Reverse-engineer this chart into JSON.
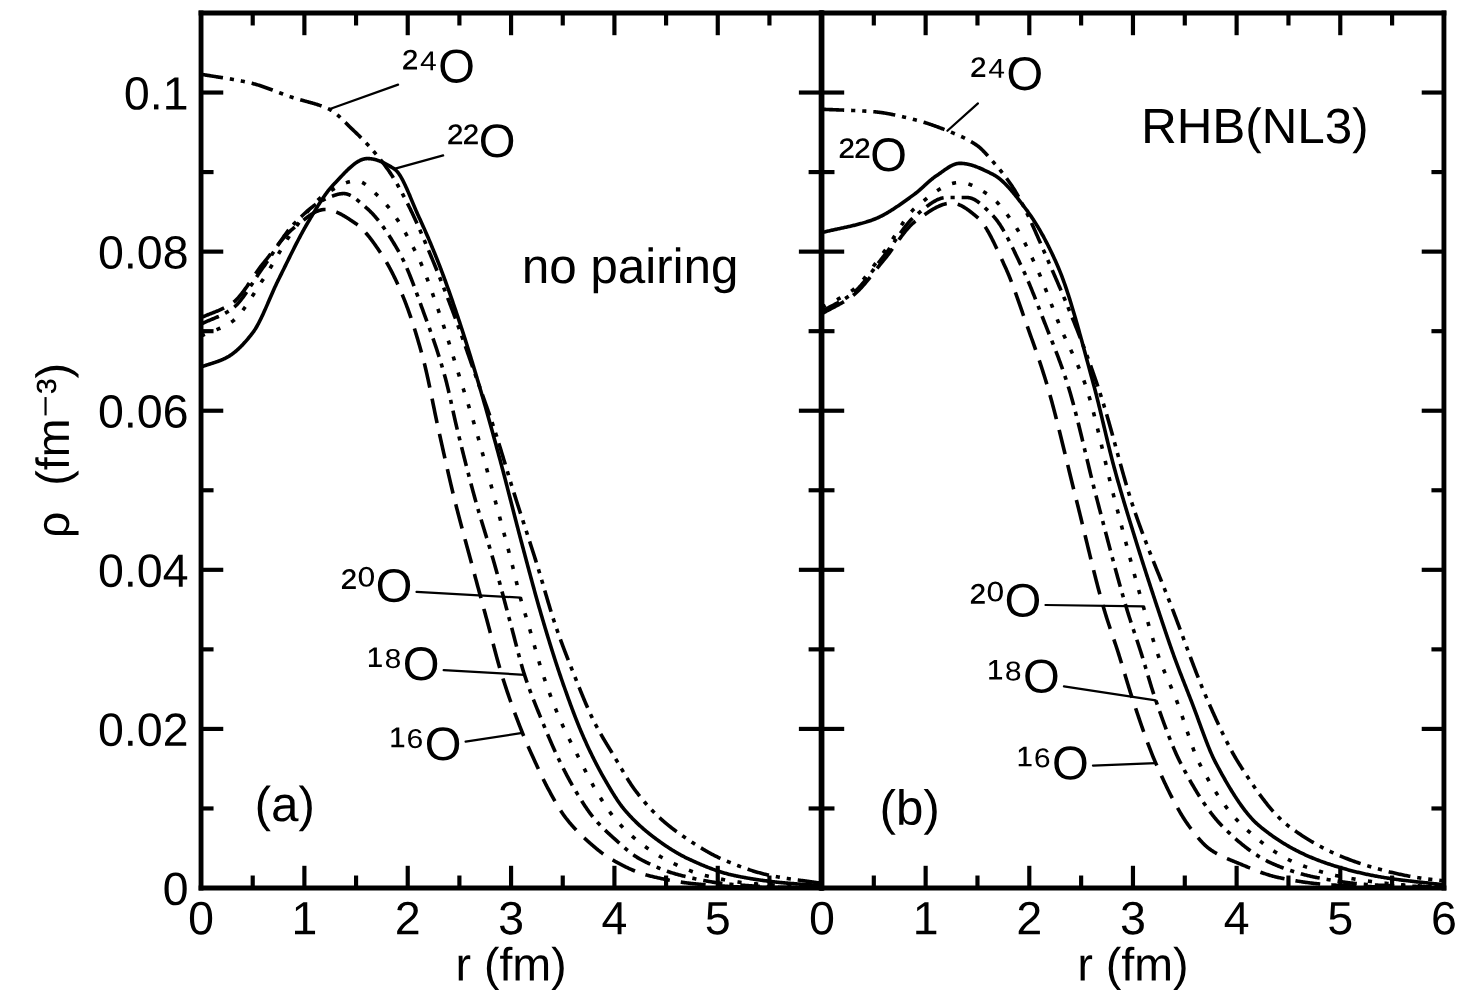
{
  "chart_data": [
    {
      "type": "line",
      "xlabel": "r (fm)",
      "ylabel": "ρ  (fm⁻³)",
      "xlim": [
        0,
        6
      ],
      "ylim": [
        0,
        0.11
      ],
      "xticks": [
        0,
        1,
        2,
        3,
        4,
        5,
        {
          "value": 6,
          "label": null
        }
      ],
      "yticks": [
        0,
        0.02,
        0.04,
        0.06,
        0.08,
        0.1
      ],
      "annotations": [
        {
          "text": "²⁴O",
          "x": 1.24,
          "y": 0.0979
        },
        {
          "text": "²²O",
          "x": 1.87,
          "y": 0.0904
        },
        "no pairing",
        {
          "text": "²⁰O",
          "x": 3.09,
          "y": 0.0365
        },
        {
          "text": "¹⁸O",
          "x": 3.13,
          "y": 0.0268
        },
        {
          "text": "¹⁶O",
          "x": 3.11,
          "y": 0.0195
        },
        "(a)"
      ],
      "series": [
        {
          "color": "#000000",
          "line_style": "dashed",
          "x": [
            0,
            0.3,
            0.6,
            0.9,
            1.2,
            1.5,
            1.75,
            1.95,
            2.15,
            2.3,
            2.45,
            2.62,
            2.77,
            2.91,
            3.11,
            3.21,
            3.37,
            3.53,
            3.75,
            3.96,
            4.32,
            4.8,
            5.3,
            6.0
          ],
          "values": [
            0.0717,
            0.0735,
            0.0785,
            0.083,
            0.0853,
            0.0835,
            0.0796,
            0.0745,
            0.0665,
            0.0575,
            0.049,
            0.0407,
            0.0335,
            0.0268,
            0.0195,
            0.0165,
            0.0122,
            0.0088,
            0.0058,
            0.0037,
            0.0016,
            0.0005,
            0.0001,
            0
          ]
        },
        {
          "color": "#000000",
          "line_style": "dashdot",
          "x": [
            0,
            0.3,
            0.6,
            0.9,
            1.2,
            1.38,
            1.6,
            1.93,
            2.15,
            2.36,
            2.48,
            2.65,
            2.84,
            3.0,
            3.13,
            3.3,
            3.45,
            3.62,
            3.8,
            4.0,
            4.24,
            4.64,
            5.1,
            5.6,
            6.0
          ],
          "values": [
            0.0709,
            0.0728,
            0.078,
            0.0835,
            0.0866,
            0.0873,
            0.0855,
            0.0796,
            0.0725,
            0.0643,
            0.0576,
            0.049,
            0.0407,
            0.033,
            0.0268,
            0.021,
            0.0165,
            0.0123,
            0.0088,
            0.0062,
            0.0037,
            0.0016,
            0.0005,
            0.0001,
            0
          ]
        },
        {
          "color": "#000000",
          "line_style": "dotted",
          "x": [
            0,
            0.3,
            0.6,
            0.9,
            1.2,
            1.5,
            1.75,
            2.09,
            2.3,
            2.5,
            2.66,
            2.84,
            3.01,
            3.09,
            3.17,
            3.31,
            3.48,
            3.65,
            3.82,
            4.0,
            4.2,
            4.48,
            4.87,
            5.3,
            6.0
          ],
          "values": [
            0.0694,
            0.0712,
            0.0765,
            0.0828,
            0.0872,
            0.0889,
            0.0865,
            0.0796,
            0.0725,
            0.0643,
            0.0576,
            0.049,
            0.0407,
            0.0365,
            0.033,
            0.0268,
            0.021,
            0.0165,
            0.0123,
            0.0088,
            0.0062,
            0.0037,
            0.0016,
            0.0006,
            0.0001
          ]
        },
        {
          "color": "#000000",
          "line_style": "solid",
          "x": [
            0,
            0.25,
            0.5,
            0.75,
            1.04,
            1.28,
            1.61,
            1.87,
            2.11,
            2.3,
            2.5,
            2.7,
            2.9,
            3.1,
            3.3,
            3.5,
            3.7,
            3.9,
            4.1,
            4.4,
            4.71,
            5.15,
            5.6,
            6.0
          ],
          "values": [
            0.0655,
            0.0667,
            0.0698,
            0.0765,
            0.0838,
            0.0884,
            0.0917,
            0.0904,
            0.0843,
            0.0785,
            0.0712,
            0.0628,
            0.0535,
            0.0435,
            0.034,
            0.0258,
            0.019,
            0.0138,
            0.0098,
            0.0062,
            0.0037,
            0.0016,
            0.0007,
            0.0003
          ]
        },
        {
          "color": "#000000",
          "line_style": "dashdotdot",
          "x": [
            0,
            0.48,
            0.88,
            1.24,
            1.47,
            1.63,
            1.83,
            2.0,
            2.22,
            2.45,
            2.66,
            2.84,
            3.02,
            3.25,
            3.43,
            3.61,
            3.8,
            4.0,
            4.2,
            4.44,
            4.7,
            5.03,
            5.5,
            6.0
          ],
          "values": [
            0.1023,
            0.1012,
            0.0994,
            0.0979,
            0.0953,
            0.0932,
            0.0899,
            0.086,
            0.0796,
            0.072,
            0.0643,
            0.0576,
            0.05,
            0.0407,
            0.033,
            0.0268,
            0.021,
            0.0165,
            0.0123,
            0.0088,
            0.0062,
            0.0037,
            0.0016,
            0.0006
          ]
        }
      ]
    },
    {
      "type": "line",
      "xlabel": "r (fm)",
      "xlim": [
        0,
        6
      ],
      "ylim": [
        0,
        0.11
      ],
      "xticks": [
        0,
        1,
        2,
        3,
        4,
        5,
        6
      ],
      "yticks": [
        0,
        0.02,
        0.04,
        0.06,
        0.08,
        0.1
      ],
      "tick_labels": "x",
      "annotations": [
        {
          "text": "²⁴O",
          "x": 1.21,
          "y": 0.0952
        },
        "RHB(NL3)",
        {
          "text": "²²O",
          "x": 0.49,
          "y": 0.084
        },
        {
          "text": "²⁰O",
          "x": 3.1,
          "y": 0.0354
        },
        {
          "text": "¹⁸O",
          "x": 3.22,
          "y": 0.0236
        },
        {
          "text": "¹⁶O",
          "x": 3.22,
          "y": 0.0157
        },
        "(b)"
      ],
      "series": [
        {
          "color": "#000000",
          "line_style": "dashed",
          "x": [
            0,
            0.3,
            0.6,
            0.9,
            1.25,
            1.5,
            1.77,
            1.97,
            2.17,
            2.45,
            2.72,
            2.86,
            3.0,
            3.22,
            3.54,
            3.75,
            4.02,
            4.41,
            4.9,
            5.5,
            6.0
          ],
          "values": [
            0.0722,
            0.0745,
            0.079,
            0.0838,
            0.0861,
            0.0843,
            0.078,
            0.071,
            0.0633,
            0.049,
            0.0351,
            0.0295,
            0.0236,
            0.0157,
            0.0078,
            0.0048,
            0.0031,
            0.0013,
            0.0004,
            0.0001,
            0
          ]
        },
        {
          "color": "#000000",
          "line_style": "dashdot",
          "x": [
            0,
            0.3,
            0.6,
            0.9,
            1.2,
            1.4,
            1.65,
            1.93,
            2.15,
            2.37,
            2.65,
            2.94,
            3.08,
            3.22,
            3.46,
            3.86,
            4.34,
            4.78,
            5.3,
            6.0
          ],
          "values": [
            0.0725,
            0.0748,
            0.0795,
            0.0845,
            0.0868,
            0.0868,
            0.0845,
            0.078,
            0.071,
            0.0633,
            0.049,
            0.0351,
            0.0295,
            0.0236,
            0.0157,
            0.0078,
            0.0031,
            0.0013,
            0.0004,
            0.0001
          ]
        },
        {
          "color": "#000000",
          "line_style": "dotted",
          "x": [
            0,
            0.3,
            0.6,
            0.9,
            1.33,
            1.6,
            1.85,
            2.07,
            2.3,
            2.54,
            2.82,
            3.1,
            3.25,
            3.42,
            3.64,
            4.06,
            4.58,
            5.06,
            5.6,
            6.0
          ],
          "values": [
            0.073,
            0.0752,
            0.08,
            0.0855,
            0.0887,
            0.0872,
            0.0835,
            0.078,
            0.0705,
            0.0633,
            0.049,
            0.0354,
            0.029,
            0.0236,
            0.0157,
            0.0078,
            0.0031,
            0.0013,
            0.0004,
            0.0001
          ]
        },
        {
          "color": "#000000",
          "line_style": "solid",
          "x": [
            0,
            0.49,
            0.89,
            1.1,
            1.33,
            1.65,
            1.97,
            2.28,
            2.62,
            2.82,
            3.02,
            3.24,
            3.4,
            3.56,
            3.8,
            4.22,
            4.87,
            5.43,
            6.0
          ],
          "values": [
            0.0824,
            0.084,
            0.0872,
            0.0895,
            0.0911,
            0.0897,
            0.0853,
            0.078,
            0.0633,
            0.0528,
            0.044,
            0.0351,
            0.029,
            0.0236,
            0.0157,
            0.0078,
            0.0031,
            0.0013,
            0.0004
          ]
        },
        {
          "color": "#000000",
          "line_style": "dashdotdot",
          "x": [
            0,
            0.49,
            0.89,
            1.21,
            1.49,
            1.65,
            1.85,
            2.21,
            2.54,
            2.7,
            3.0,
            3.38,
            3.72,
            4.02,
            4.5,
            5.19,
            5.75,
            6.0
          ],
          "values": [
            0.0979,
            0.0976,
            0.0966,
            0.0952,
            0.0934,
            0.0913,
            0.0879,
            0.078,
            0.0675,
            0.0615,
            0.048,
            0.0351,
            0.0236,
            0.0157,
            0.0078,
            0.0031,
            0.0013,
            0.0009
          ]
        }
      ]
    }
  ]
}
